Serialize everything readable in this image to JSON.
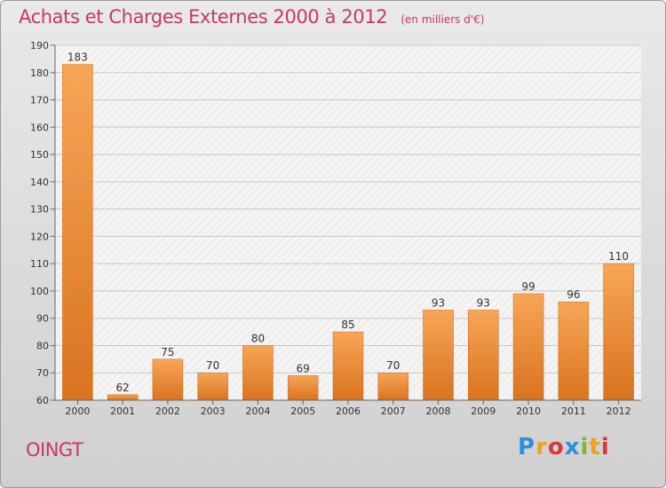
{
  "title": "Achats et Charges Externes 2000 à 2012",
  "unit_note": "(en milliers d'€)",
  "commune": "OINGT",
  "brand": {
    "letters": [
      "P",
      "r",
      "o",
      "x",
      "i",
      "t",
      "i"
    ],
    "colors": [
      "#2f8fd8",
      "#f0a020",
      "#d83a3a",
      "#2f8fd8",
      "#7ab83a",
      "#f0a020",
      "#d83a3a"
    ]
  },
  "colors": {
    "bar_top": "#f7a657",
    "bar_bottom": "#d9731f",
    "title": "#c53a5e"
  },
  "chart_data": {
    "type": "bar",
    "categories": [
      "2000",
      "2001",
      "2002",
      "2003",
      "2004",
      "2005",
      "2006",
      "2007",
      "2008",
      "2009",
      "2010",
      "2011",
      "2012"
    ],
    "values": [
      183,
      62,
      75,
      70,
      80,
      69,
      85,
      70,
      93,
      93,
      99,
      96,
      110
    ],
    "ylim": [
      60,
      190
    ],
    "yticks": [
      60,
      70,
      80,
      90,
      100,
      110,
      120,
      130,
      140,
      150,
      160,
      170,
      180,
      190
    ],
    "grid": true,
    "data_labels": true
  }
}
